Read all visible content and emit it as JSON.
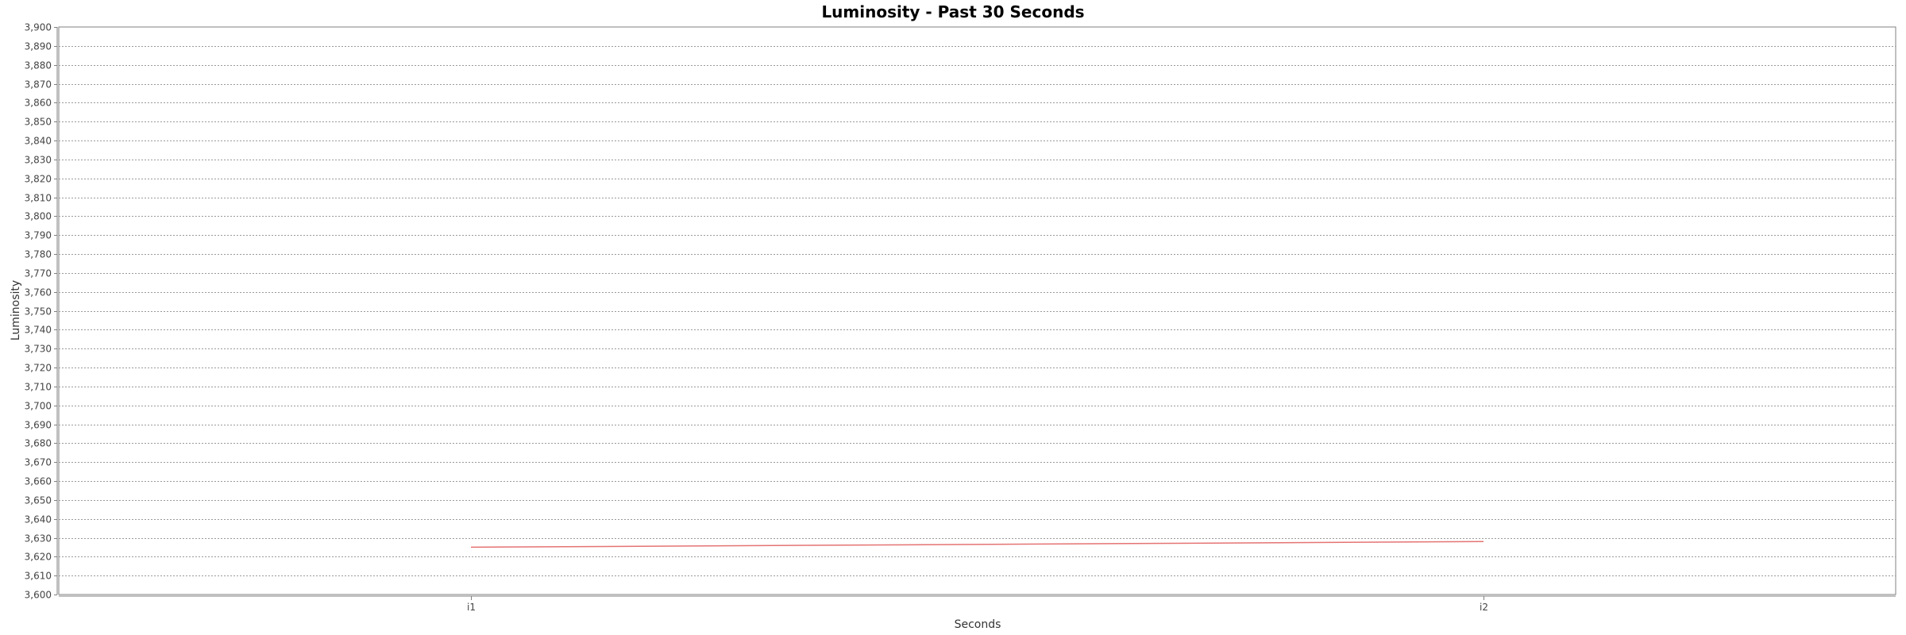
{
  "chart_data": {
    "type": "line",
    "title": "Luminosity - Past 30 Seconds",
    "xlabel": "Seconds",
    "ylabel": "Luminosity",
    "categories": [
      "i1",
      "i2"
    ],
    "series": [
      {
        "values": [
          3625,
          3628
        ],
        "color": "#e57373"
      }
    ],
    "ylim": [
      3600,
      3900
    ],
    "y_tick_step": 10,
    "y_tick_labels": [
      "3,600",
      "3,610",
      "3,620",
      "3,630",
      "3,640",
      "3,650",
      "3,660",
      "3,670",
      "3,680",
      "3,690",
      "3,700",
      "3,710",
      "3,720",
      "3,730",
      "3,740",
      "3,750",
      "3,760",
      "3,770",
      "3,780",
      "3,790",
      "3,800",
      "3,810",
      "3,820",
      "3,830",
      "3,840",
      "3,850",
      "3,860",
      "3,870",
      "3,880",
      "3,890",
      "3,900"
    ],
    "grid": true,
    "legend": "none"
  }
}
